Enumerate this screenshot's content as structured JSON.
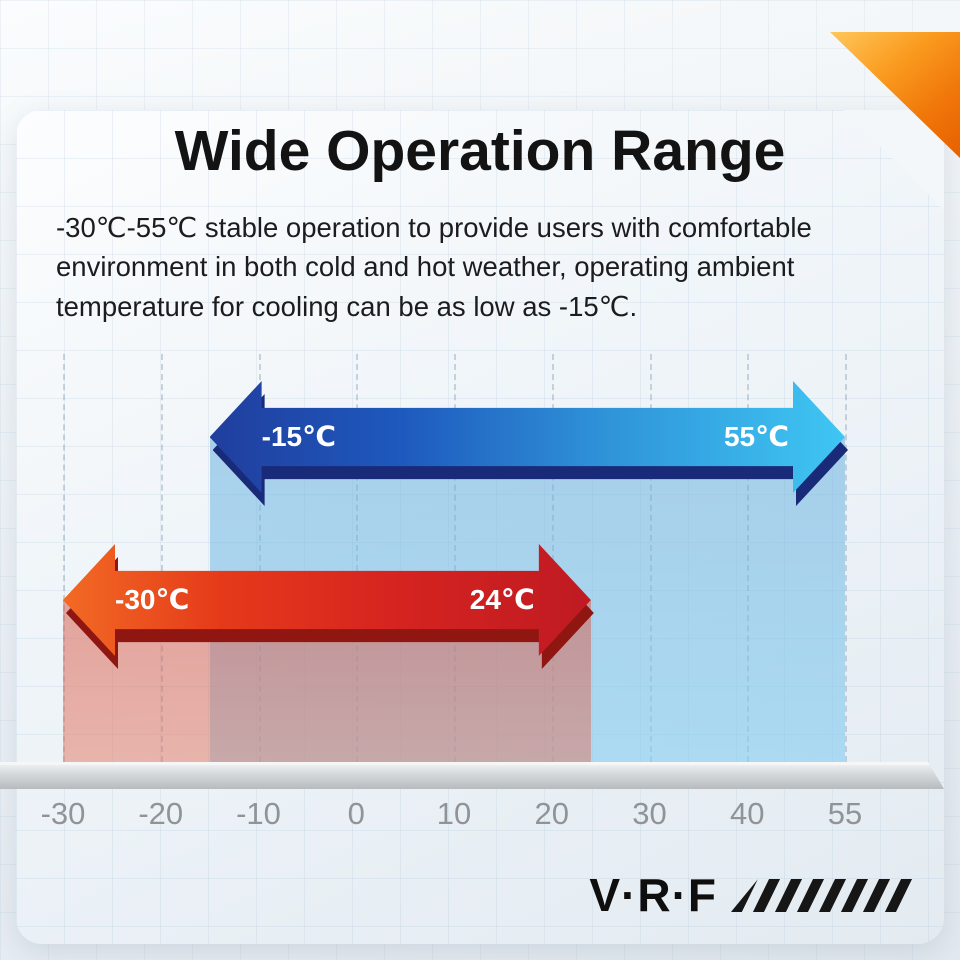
{
  "page": {
    "title": "Wide Operation Range",
    "description": "-30℃-55℃ stable operation to provide users with comfortable environment in both cold and hot weather, operating ambient temperature for cooling can be as low as -15℃."
  },
  "footer": {
    "logo": "V·R·F"
  },
  "accents": {
    "corner_accent_color": "#f0760a"
  },
  "chart_data": {
    "type": "bar",
    "variant": "horizontal-double-headed-range-arrows",
    "x_ticks": [
      "-30",
      "-20",
      "-10",
      "0",
      "10",
      "20",
      "30",
      "40",
      "55"
    ],
    "x_tick_values": [
      -30,
      -20,
      -10,
      0,
      10,
      20,
      30,
      40,
      55
    ],
    "x_axis_spacing": "equal-interval-ticks",
    "grid": "vertical-dashed",
    "legend": false,
    "series": [
      {
        "name": "blue-range",
        "from": -15,
        "to": 55,
        "from_label": "-15℃",
        "to_label": "55℃",
        "colors": [
          "#203e9e",
          "#1e59bd",
          "#2f93d8",
          "#3fc6f3"
        ],
        "shadow_color": "#182a78",
        "projection_top": "rgba(96,170,220,0.50)",
        "projection_bottom": "rgba(134,205,240,0.62)"
      },
      {
        "name": "red-range",
        "from": -30,
        "to": 24,
        "from_label": "-30℃",
        "to_label": "24℃",
        "colors": [
          "#f26a24",
          "#e53a1a",
          "#d62420",
          "#bf1a22"
        ],
        "shadow_color": "#8f1611",
        "projection_top": "rgba(214,88,72,0.52)",
        "projection_bottom": "rgba(226,118,96,0.50)"
      }
    ]
  }
}
